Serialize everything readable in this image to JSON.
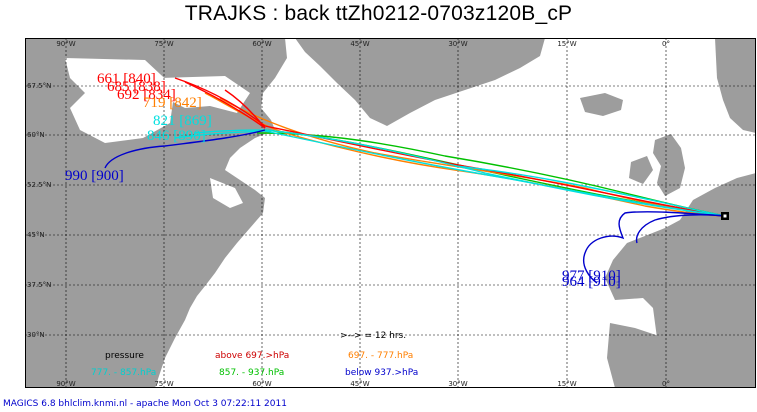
{
  "title": "TRAJKS : back ttZh0212-0703z120B_cP",
  "map": {
    "lon_ticks": [
      "90°W",
      "75°W",
      "60°W",
      "45°W",
      "30°W",
      "15°W",
      "0°"
    ],
    "lat_ticks": [
      "67.5°N",
      "60°N",
      "52.5°N",
      "45°N",
      "37.5°N",
      "30°N"
    ],
    "colors": {
      "sea": "#ffffff",
      "land": "#9d9d9d",
      "grid": "#000000"
    }
  },
  "trajectories": [
    {
      "color": "#ff0000",
      "label": "661 [840]"
    },
    {
      "color": "#ff0000",
      "label": "685 [838]"
    },
    {
      "color": "#ff0000",
      "label": "692 [834]"
    },
    {
      "color": "#ff7f00",
      "label": "719 [842]"
    },
    {
      "color": "#00e0e0",
      "label": "821 [869]"
    },
    {
      "color": "#00e0e0",
      "label": "846 [890]"
    },
    {
      "color": "#0000cc",
      "label": "990 [900]"
    },
    {
      "color": "#0000cc",
      "label": "977 [910]"
    },
    {
      "color": "#0000cc",
      "label": "964 [910]"
    }
  ],
  "legend": {
    "interval_note": ">--> = 12 hrs.",
    "pressure_label": "pressure",
    "above": "above  697.>hPa",
    "mid_high": "697. -    777.hPa",
    "mid": "777. -    857.hPa",
    "mid_low": "857. -    937.hPa",
    "below": "below   937.>hPa",
    "colors": {
      "above": "#cc0000",
      "mid_high": "#ff7f00",
      "mid": "#00d0d0",
      "mid_low": "#00c000",
      "below": "#0000cc"
    }
  },
  "footer": "MAGICS 6.8 bhlclim.knmi.nl - apache Mon Oct  3 07:22:11 2011"
}
